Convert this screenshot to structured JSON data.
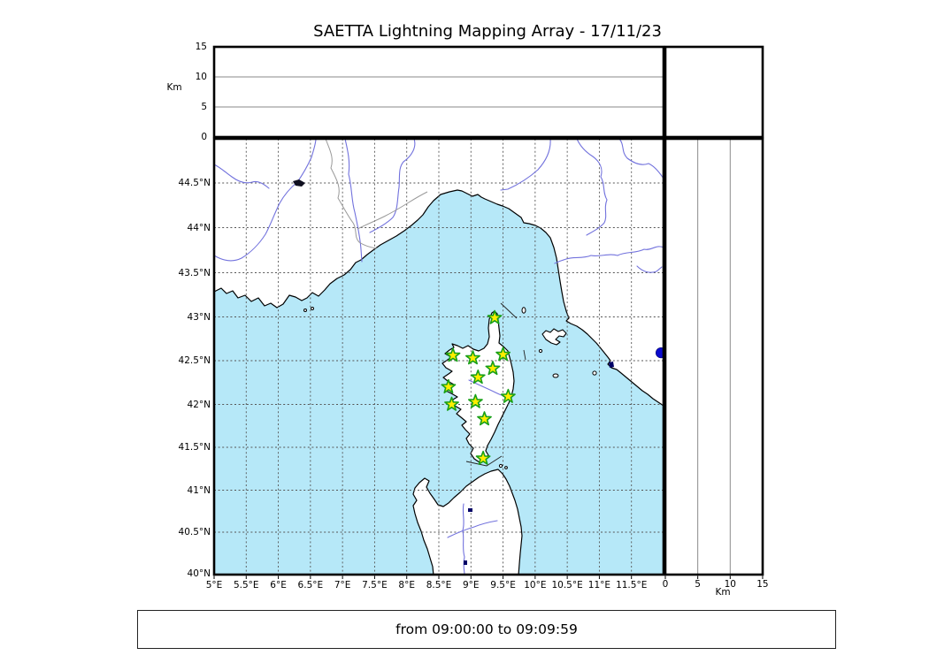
{
  "title": "SAETTA Lightning Mapping Array - 17/11/23",
  "footer": {
    "text": "from 09:00:00 to 09:09:59"
  },
  "colors": {
    "sea": "#b6e8f8",
    "land": "#ffffff",
    "coast": "#000000",
    "grid_dashed": "#555555",
    "grid_thin": "#8a8a8a",
    "river": "#7272dd",
    "admin_border": "#999999",
    "station_fill": "#ffee00",
    "station_edge": "#18a018",
    "detection": "#0a0acd"
  },
  "top_panel": {
    "axis_label": "Km",
    "ticks": [
      {
        "label": "0",
        "km": 0
      },
      {
        "label": "5",
        "km": 5
      },
      {
        "label": "10",
        "km": 10
      },
      {
        "label": "15",
        "km": 15
      }
    ]
  },
  "right_panel": {
    "axis_label": "Km",
    "ticks": [
      {
        "label": "0",
        "km": 0
      },
      {
        "label": "5",
        "km": 5
      },
      {
        "label": "10",
        "km": 10
      },
      {
        "label": "15",
        "km": 15
      }
    ]
  },
  "map": {
    "lat_ticks": [
      {
        "label": "44.5°N",
        "value": 44.5
      },
      {
        "label": "44°N",
        "value": 44.0
      },
      {
        "label": "43.5°N",
        "value": 43.5
      },
      {
        "label": "43°N",
        "value": 43.0
      },
      {
        "label": "42.5°N",
        "value": 42.5
      },
      {
        "label": "42°N",
        "value": 42.0
      },
      {
        "label": "41.5°N",
        "value": 41.5
      },
      {
        "label": "41°N",
        "value": 41.0
      },
      {
        "label": "40.5°N",
        "value": 40.5
      },
      {
        "label": "40°N",
        "value": 40.0
      }
    ],
    "lon_ticks": [
      {
        "label": "5°E",
        "value": 5.0
      },
      {
        "label": "5.5°E",
        "value": 5.5
      },
      {
        "label": "6°E",
        "value": 6.0
      },
      {
        "label": "6.5°E",
        "value": 6.5
      },
      {
        "label": "7°E",
        "value": 7.0
      },
      {
        "label": "7.5°E",
        "value": 7.5
      },
      {
        "label": "8°E",
        "value": 8.0
      },
      {
        "label": "8.5°E",
        "value": 8.5
      },
      {
        "label": "9°E",
        "value": 9.0
      },
      {
        "label": "9.5°E",
        "value": 9.5
      },
      {
        "label": "10°E",
        "value": 10.0
      },
      {
        "label": "10.5°E",
        "value": 10.5
      },
      {
        "label": "11°E",
        "value": 11.0
      },
      {
        "label": "11.5°E",
        "value": 11.5
      }
    ]
  },
  "chart_data": {
    "type": "scatter",
    "title": "SAETTA Lightning Mapping Array - 17/11/23",
    "time_window": {
      "from": "09:00:00",
      "to": "09:09:59"
    },
    "map_extent": {
      "lon_min": 5,
      "lon_max": 12,
      "lat_min": 40,
      "lat_max": 45
    },
    "altitude_range_km": [
      0,
      15
    ],
    "altitude_ticks_km": [
      0,
      5,
      10,
      15
    ],
    "grid": true,
    "series": [
      {
        "name": "lma-stations",
        "marker": "star",
        "points": [
          {
            "lon": 9.37,
            "lat": 42.99
          },
          {
            "lon": 8.72,
            "lat": 42.56
          },
          {
            "lon": 9.03,
            "lat": 42.53
          },
          {
            "lon": 9.5,
            "lat": 42.57
          },
          {
            "lon": 9.34,
            "lat": 42.41
          },
          {
            "lon": 9.11,
            "lat": 42.31
          },
          {
            "lon": 8.65,
            "lat": 42.2
          },
          {
            "lon": 9.58,
            "lat": 42.09
          },
          {
            "lon": 9.07,
            "lat": 42.03
          },
          {
            "lon": 8.7,
            "lat": 42.0
          },
          {
            "lon": 9.21,
            "lat": 41.83
          },
          {
            "lon": 9.19,
            "lat": 41.37
          }
        ]
      },
      {
        "name": "lightning-sources",
        "marker": "circle",
        "points": [
          {
            "lon": 11.96,
            "lat": 42.59,
            "alt_km": 0
          }
        ]
      }
    ]
  }
}
